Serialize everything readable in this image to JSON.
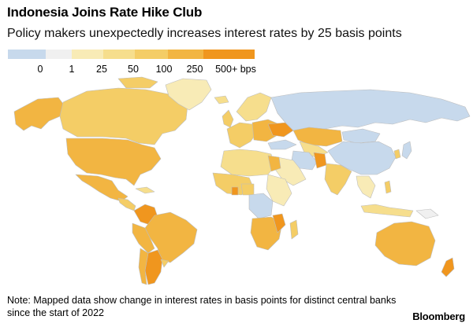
{
  "header": {
    "title": "Indonesia Joins Rate Hike Club",
    "subtitle": "Policy makers unexpectedly increases interest rates by 25 basis points"
  },
  "legend": {
    "labels": [
      "0",
      "1",
      "25",
      "50",
      "100",
      "250",
      "500+ bps"
    ],
    "colors": [
      "#c7d9ec",
      "#f0f0f0",
      "#f8ebb6",
      "#f6de8d",
      "#f4cd66",
      "#f2b542",
      "#f0961e"
    ]
  },
  "map_colors": {
    "ocean": "#ffffff",
    "no_data": "#ffffff",
    "border": "#bdbdbd"
  },
  "note": {
    "text": "Note: Mapped data show change in interest rates in basis points for distinct central banks since the start of 2022"
  },
  "brand": {
    "text": "Bloomberg"
  }
}
